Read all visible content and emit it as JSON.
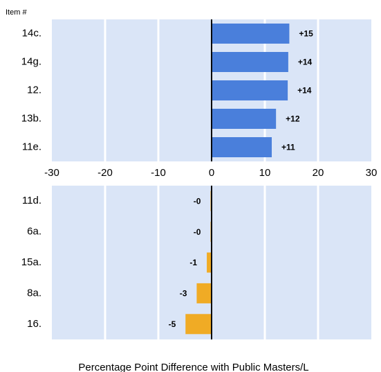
{
  "chart_data": [
    {
      "type": "hbar",
      "y_axis_title": "Item #",
      "categories": [
        "14c.",
        "14g.",
        "12.",
        "13b.",
        "11e."
      ],
      "values": [
        14.6,
        14.4,
        14.3,
        12.1,
        11.3
      ],
      "value_labels": [
        "+15",
        "+14",
        "+14",
        "+12",
        "+11"
      ],
      "color": "#4a7fdb",
      "xlim": [
        -30,
        30
      ],
      "xticks": [
        -30,
        -20,
        -10,
        0,
        10,
        20,
        30
      ],
      "grid": true
    },
    {
      "type": "hbar",
      "categories": [
        "11d.",
        "6a.",
        "15a.",
        "8a.",
        "16."
      ],
      "values": [
        -0.2,
        -0.2,
        -0.9,
        -2.8,
        -4.9
      ],
      "value_labels": [
        "-0",
        "-0",
        "-1",
        "-3",
        "-5"
      ],
      "color": "#f0ab25",
      "xlim": [
        -30,
        30
      ],
      "xticks": [
        -30,
        -20,
        -10,
        0,
        10,
        20,
        30
      ],
      "grid": true,
      "xlabel": "Percentage Point Difference with Public Masters/L"
    }
  ]
}
